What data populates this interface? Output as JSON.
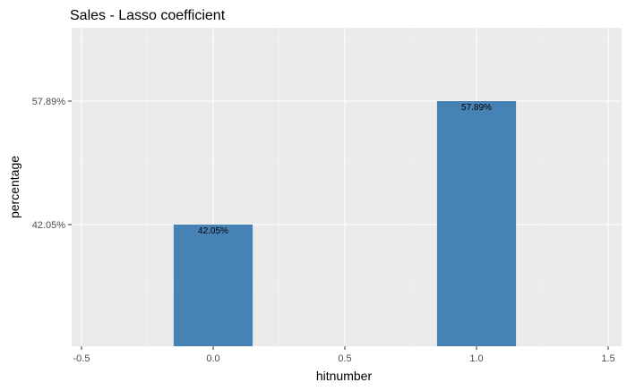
{
  "chart_data": {
    "type": "bar",
    "title": "Sales - Lasso coefficient",
    "xlabel": "hitnumber",
    "ylabel": "percentage",
    "x_ticks": [
      "-0.5",
      "0.0",
      "0.5",
      "1.0",
      "1.5"
    ],
    "x_tick_values": [
      -0.5,
      0.0,
      0.5,
      1.0,
      1.5
    ],
    "y_ticks": [
      "42.05%",
      "57.89%"
    ],
    "y_tick_values": [
      42.05,
      57.89
    ],
    "xlim": [
      -0.5,
      1.5
    ],
    "bar_width": 0.3,
    "categories": [
      0,
      1
    ],
    "values": [
      42.05,
      57.89
    ],
    "data_labels": [
      "42.05%",
      "57.89%"
    ],
    "grid": true,
    "colors": {
      "bar": "#4682b4",
      "panel_background": "#ebebeb",
      "grid_major": "#ffffff",
      "grid_minor": "#f5f5f5"
    }
  }
}
